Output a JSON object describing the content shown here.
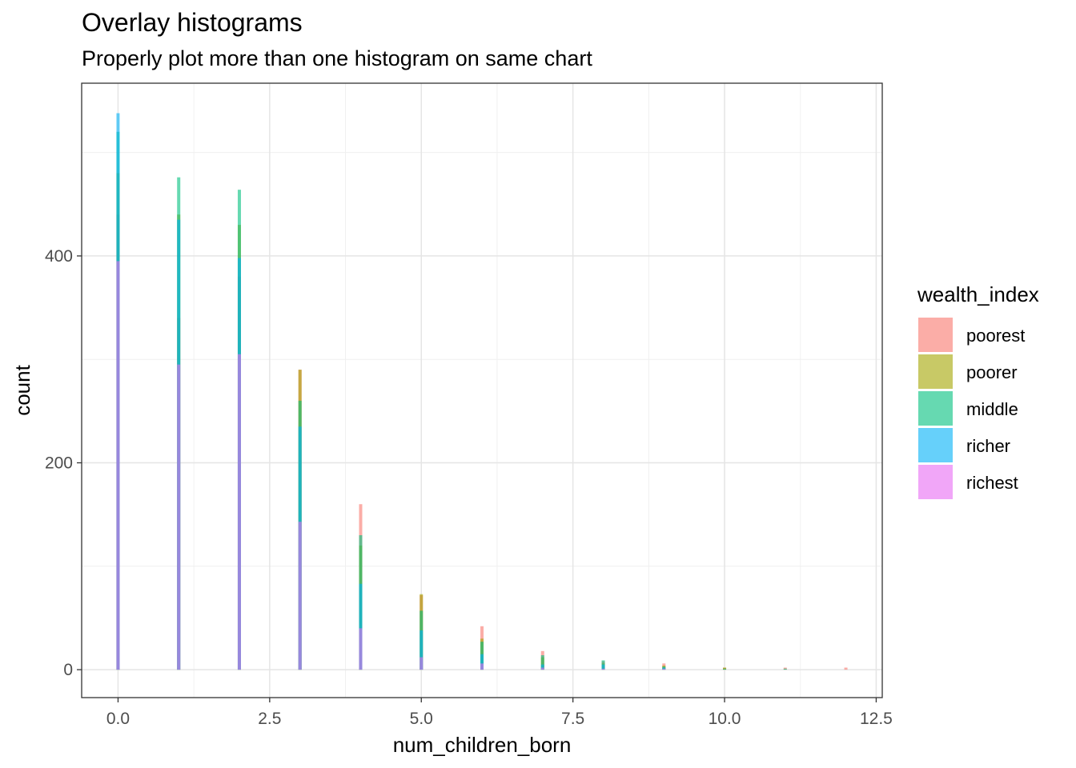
{
  "title": "Overlay histograms",
  "subtitle": "Properly plot more than one histogram on same chart",
  "chart_data": {
    "type": "bar",
    "xlabel": "num_children_born",
    "ylabel": "count",
    "xlim": [
      -0.6,
      12.6
    ],
    "ylim": [
      -27,
      567
    ],
    "x_ticks": [
      0.0,
      2.5,
      5.0,
      7.5,
      10.0,
      12.5
    ],
    "x_tick_labels": [
      "0.0",
      "2.5",
      "5.0",
      "7.5",
      "10.0",
      "12.5"
    ],
    "y_ticks": [
      0,
      200,
      400
    ],
    "y_tick_labels": [
      "0",
      "200",
      "400"
    ],
    "grid": true,
    "overlay": true,
    "opacity": 0.6,
    "legend": {
      "title": "wealth_index",
      "position": "right",
      "entries": [
        "poorest",
        "poorer",
        "middle",
        "richer",
        "richest"
      ]
    },
    "x": [
      0,
      1,
      2,
      3,
      4,
      5,
      6,
      7,
      8,
      9,
      10,
      11,
      12
    ],
    "series": [
      {
        "name": "poorest",
        "color": "#F8766D",
        "values": [
          440,
          340,
          380,
          290,
          160,
          72,
          42,
          18,
          8,
          6,
          2,
          2,
          2
        ]
      },
      {
        "name": "poorer",
        "color": "#A3A500",
        "values": [
          480,
          440,
          430,
          290,
          120,
          73,
          30,
          12,
          6,
          4,
          2,
          0,
          0
        ]
      },
      {
        "name": "middle",
        "color": "#00BF7D",
        "values": [
          520,
          476,
          464,
          260,
          130,
          57,
          27,
          14,
          9,
          3,
          1,
          1,
          0
        ]
      },
      {
        "name": "richer",
        "color": "#00B0F6",
        "values": [
          538,
          435,
          398,
          235,
          83,
          38,
          15,
          5,
          5,
          2,
          0,
          0,
          0
        ]
      },
      {
        "name": "richest",
        "color": "#E76BF3",
        "values": [
          395,
          295,
          305,
          143,
          40,
          12,
          6,
          2,
          1,
          1,
          0,
          0,
          0
        ]
      }
    ]
  }
}
